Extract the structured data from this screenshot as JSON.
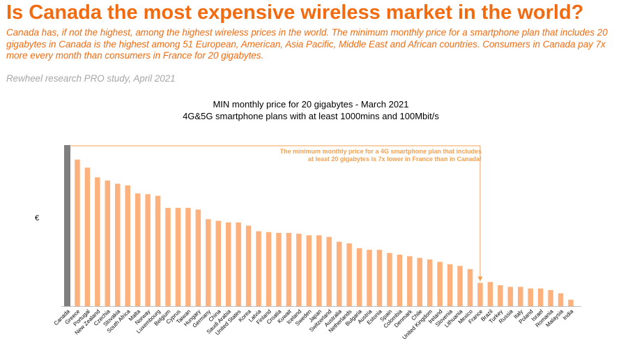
{
  "page": {
    "headline": "Is Canada the most expensive wireless market in the world?",
    "intro": "Canada has, if not the highest, among the highest wireless prices in the world. The minimum monthly price for a smartphone plan that includes 20 gigabytes in Canada is the highest among 51 European, American, Asia Pacific, Middle East and African countries. Consumers in Canada pay 7x more every month than consumers in France for 20 gigabytes.",
    "source": "Rewheel research PRO study, April 2021"
  },
  "colors": {
    "accent": "#f26b10",
    "bar": "#fdb27e",
    "highlight_bar": "#7f7f7f",
    "annotation": "#f5a050",
    "source_text": "#a6a6a6"
  },
  "chart_data": {
    "type": "bar",
    "title": "MIN monthly price for 20 gigabytes - March 2021",
    "subtitle": "4G&5G smartphone plans with at least 1000mins and 100Mbit/s",
    "ylabel": "€",
    "xlabel": "",
    "ylim": [
      0,
      100
    ],
    "grid": false,
    "categories": [
      "Canada",
      "Greece",
      "Portugal",
      "New Zealand",
      "Czechia",
      "Slovakia",
      "South Africa",
      "Malta",
      "Norway",
      "Luxembourg",
      "Belgium",
      "Cyprus",
      "Taiwan",
      "Hungary",
      "Germany",
      "China",
      "Saudi Arabia",
      "United States",
      "Korea",
      "Latvia",
      "Finland",
      "Croatia",
      "Kuwait",
      "Iceland",
      "Sweden",
      "Japan",
      "Switzerland",
      "Australia",
      "Netherlands",
      "Bulgaria",
      "Austria",
      "Estonia",
      "Spain",
      "Colombia",
      "Denmark",
      "Chile",
      "United Kingdom",
      "Ireland",
      "Slovenia",
      "Lithuania",
      "Mexico",
      "France",
      "Brazil",
      "Turkey",
      "Russia",
      "Italy",
      "Poland",
      "Israel",
      "Romania",
      "Malaysia",
      "India"
    ],
    "values": [
      100,
      91,
      86,
      80,
      78,
      76,
      75,
      70,
      69.5,
      68.5,
      61,
      61,
      61,
      60,
      54,
      53,
      52,
      52,
      50,
      46.5,
      46,
      45.5,
      45.5,
      45,
      44,
      44,
      43,
      40,
      39,
      36,
      35,
      35,
      33,
      32,
      31,
      30,
      29,
      27.5,
      26,
      25,
      23,
      14.5,
      15,
      13,
      12,
      12,
      11,
      11,
      10,
      8,
      4
    ],
    "highlight": "Canada",
    "annotation": {
      "text_line1": "The minimum monthly price for a 4G smartphone plan that includes",
      "text_line2": "at least 20 gigabytes is 7x lower in France than in Canada!",
      "from": "Canada",
      "to": "France"
    }
  }
}
